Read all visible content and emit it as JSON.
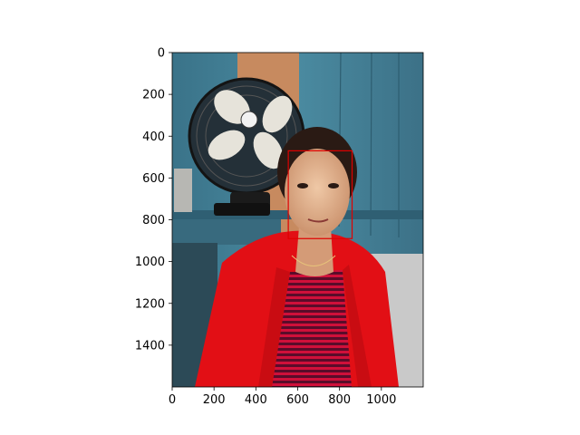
{
  "figure": {
    "image_width": 1200,
    "image_height": 1600,
    "xlim": [
      0,
      1200
    ],
    "ylim": [
      1600,
      0
    ],
    "y_inverted": true,
    "x_ticks": [
      0,
      200,
      400,
      600,
      800,
      1000
    ],
    "y_ticks": [
      0,
      200,
      400,
      600,
      800,
      1000,
      1200,
      1400
    ],
    "x_tick_labels": [
      "0",
      "200",
      "400",
      "600",
      "800",
      "1000"
    ],
    "y_tick_labels": [
      "0",
      "200",
      "400",
      "600",
      "800",
      "1000",
      "1200",
      "1400"
    ],
    "detection_box": {
      "x0": 555,
      "y0": 470,
      "x1": 860,
      "y1": 890,
      "color": "#e00000"
    }
  },
  "photo": {
    "description_scene_colors": {
      "wall_blue": "#3f7d92",
      "wall_wood": "#c98c62",
      "fan_black": "#1b1b1b",
      "fan_blade": "#e4e1d8",
      "skin": "#d9a47f",
      "hair": "#2a1a14",
      "jacket_red": "#e00f14",
      "stripe_dark": "#7a0f2e"
    }
  }
}
